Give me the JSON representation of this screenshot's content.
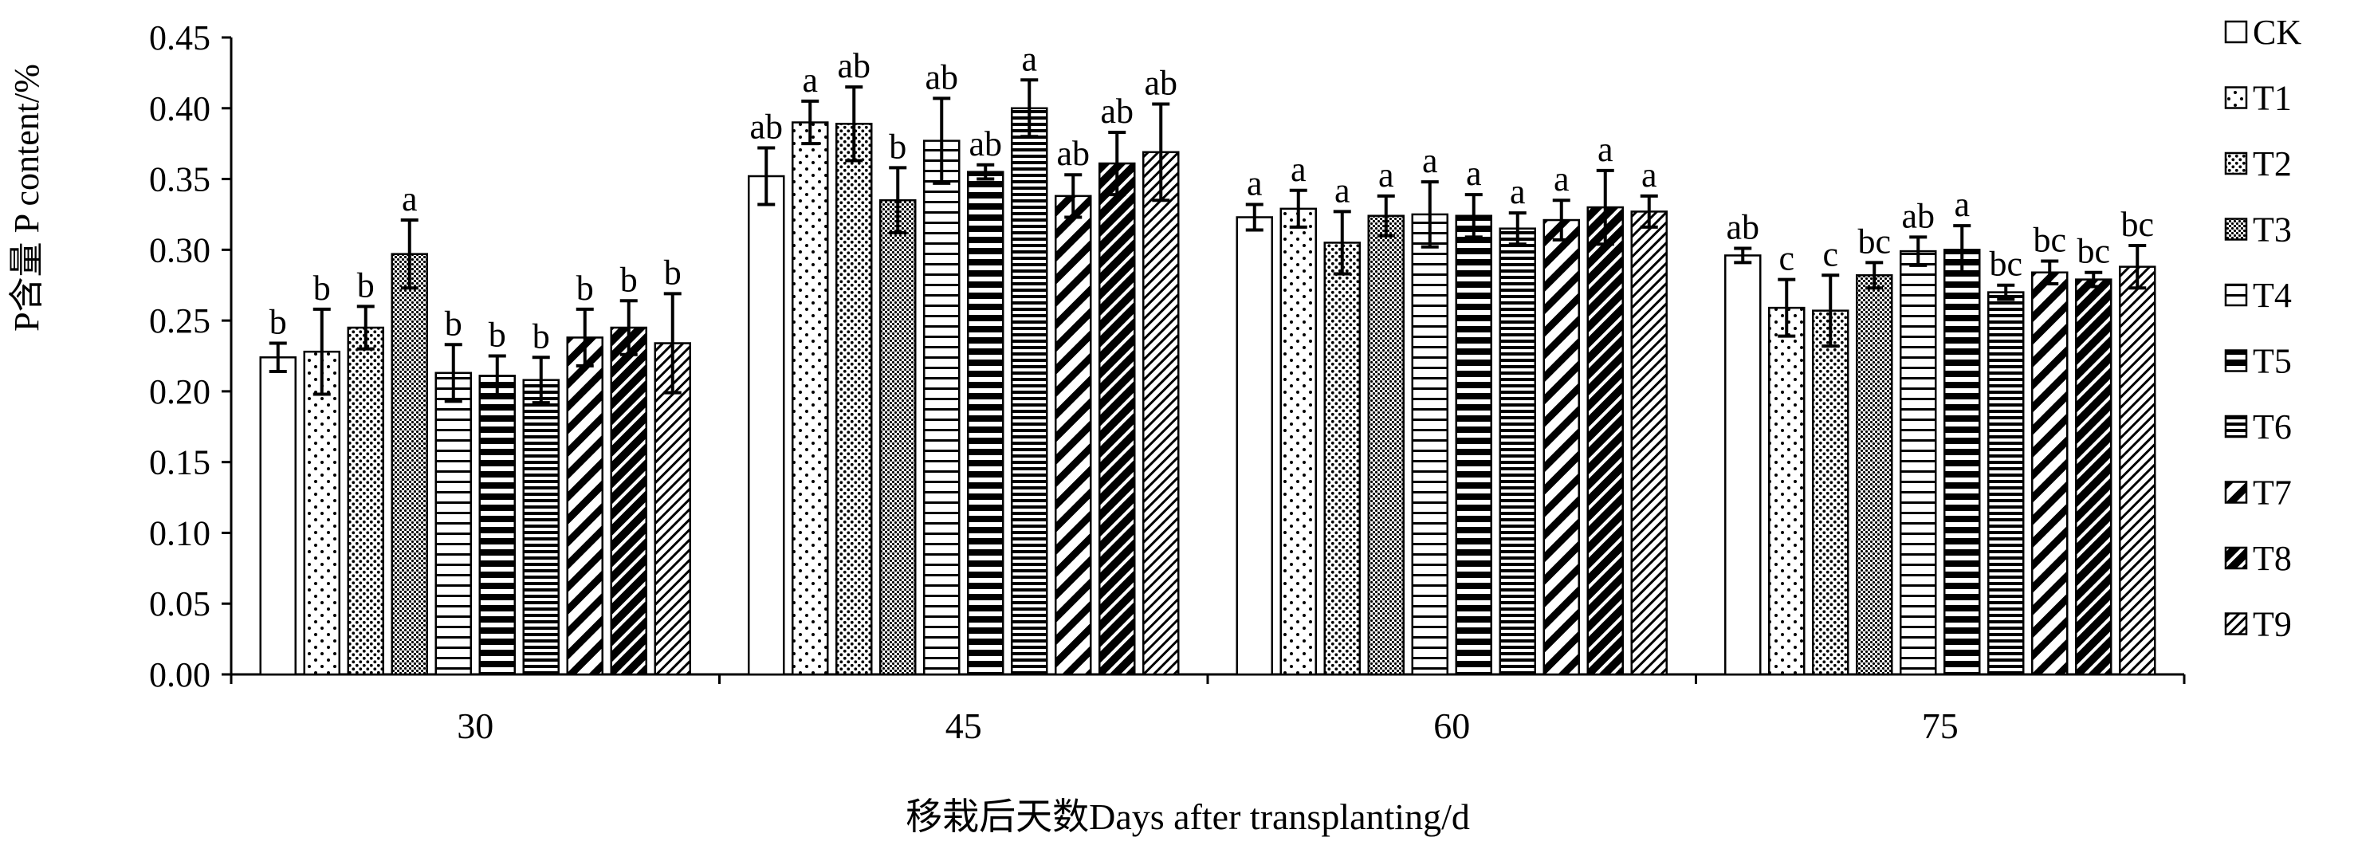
{
  "chart_data": {
    "type": "bar",
    "xlabel": "移栽后天数Days after transplanting/d",
    "ylabel": "P含量  P content/%",
    "ylim": [
      0,
      0.45
    ],
    "yticks": [
      "0.00",
      "0.05",
      "0.10",
      "0.15",
      "0.20",
      "0.25",
      "0.30",
      "0.35",
      "0.40",
      "0.45"
    ],
    "categories": [
      "30",
      "45",
      "60",
      "75"
    ],
    "legend_position": "right",
    "series": [
      {
        "name": "CK",
        "pattern": "plain",
        "values": [
          0.224,
          0.352,
          0.323,
          0.296
        ],
        "errors": [
          0.01,
          0.02,
          0.009,
          0.005
        ],
        "letters": [
          "b",
          "ab",
          "a",
          "ab"
        ]
      },
      {
        "name": "T1",
        "pattern": "sparse-dots",
        "values": [
          0.228,
          0.39,
          0.329,
          0.259
        ],
        "errors": [
          0.03,
          0.015,
          0.013,
          0.02
        ],
        "letters": [
          "b",
          "a",
          "a",
          "c"
        ]
      },
      {
        "name": "T2",
        "pattern": "dense-dots",
        "values": [
          0.245,
          0.389,
          0.305,
          0.257
        ],
        "errors": [
          0.015,
          0.026,
          0.022,
          0.025
        ],
        "letters": [
          "b",
          "ab",
          "a",
          "c"
        ]
      },
      {
        "name": "T3",
        "pattern": "very-dense-dots",
        "values": [
          0.297,
          0.335,
          0.324,
          0.282
        ],
        "errors": [
          0.024,
          0.023,
          0.014,
          0.009
        ],
        "letters": [
          "a",
          "b",
          "a",
          "bc"
        ]
      },
      {
        "name": "T4",
        "pattern": "horizontal-lines",
        "values": [
          0.213,
          0.377,
          0.325,
          0.299
        ],
        "errors": [
          0.02,
          0.03,
          0.023,
          0.01
        ],
        "letters": [
          "b",
          "ab",
          "a",
          "ab"
        ]
      },
      {
        "name": "T5",
        "pattern": "thick-horizontal",
        "values": [
          0.211,
          0.355,
          0.324,
          0.3
        ],
        "errors": [
          0.014,
          0.005,
          0.015,
          0.017
        ],
        "letters": [
          "b",
          "ab",
          "a",
          "a"
        ]
      },
      {
        "name": "T6",
        "pattern": "dense-horizontal",
        "values": [
          0.208,
          0.4,
          0.315,
          0.27
        ],
        "errors": [
          0.016,
          0.02,
          0.011,
          0.005
        ],
        "letters": [
          "b",
          "a",
          "a",
          "bc"
        ]
      },
      {
        "name": "T7",
        "pattern": "diagonal-stripes",
        "values": [
          0.238,
          0.338,
          0.321,
          0.284
        ],
        "errors": [
          0.02,
          0.015,
          0.014,
          0.008
        ],
        "letters": [
          "b",
          "ab",
          "a",
          "bc"
        ]
      },
      {
        "name": "T8",
        "pattern": "dark-diagonal",
        "values": [
          0.245,
          0.361,
          0.33,
          0.279
        ],
        "errors": [
          0.019,
          0.022,
          0.026,
          0.005
        ],
        "letters": [
          "b",
          "ab",
          "a",
          "bc"
        ]
      },
      {
        "name": "T9",
        "pattern": "fine-diagonal",
        "values": [
          0.234,
          0.369,
          0.327,
          0.288
        ],
        "errors": [
          0.035,
          0.034,
          0.011,
          0.015
        ],
        "letters": [
          "b",
          "ab",
          "a",
          "bc"
        ]
      }
    ]
  }
}
